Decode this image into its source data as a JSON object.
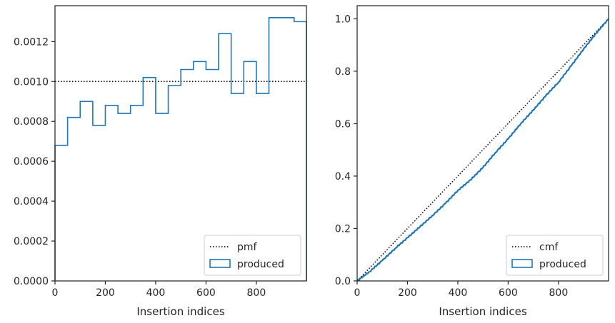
{
  "chart_data": [
    {
      "type": "step-histogram",
      "xlabel": "Insertion indices",
      "ylabel": "",
      "xlim": [
        0,
        999
      ],
      "ylim": [
        0,
        0.00138
      ],
      "xticks": [
        0,
        200,
        400,
        600,
        800
      ],
      "xtick_labels": [
        "0",
        "200",
        "400",
        "600",
        "800"
      ],
      "yticks": [
        0,
        0.0002,
        0.0004,
        0.0006,
        0.0008,
        0.001,
        0.0012
      ],
      "ytick_labels": [
        "0.0000",
        "0.0002",
        "0.0004",
        "0.0006",
        "0.0008",
        "0.0010",
        "0.0012"
      ],
      "reference_line": {
        "name": "pmf",
        "y": 0.001,
        "style": "dotted",
        "color": "#000000"
      },
      "series": [
        {
          "name": "produced",
          "color": "#1f77b4",
          "bin_edges": [
            0,
            50,
            100,
            150,
            200,
            250,
            300,
            350,
            400,
            450,
            500,
            550,
            600,
            650,
            700,
            750,
            800,
            850,
            950,
            999
          ],
          "values": [
            0.00068,
            0.00082,
            0.0009,
            0.00078,
            0.00088,
            0.00084,
            0.00088,
            0.00102,
            0.00084,
            0.00098,
            0.00106,
            0.0011,
            0.00106,
            0.00124,
            0.00094,
            0.0011,
            0.00094,
            0.00132,
            0.0013
          ]
        }
      ],
      "legend": {
        "position": "lower-right",
        "entries": [
          "pmf",
          "produced"
        ]
      },
      "grid": false
    },
    {
      "type": "line",
      "xlabel": "Insertion indices",
      "ylabel": "",
      "xlim": [
        0,
        999
      ],
      "ylim": [
        0,
        1.05
      ],
      "xticks": [
        0,
        200,
        400,
        600,
        800
      ],
      "xtick_labels": [
        "0",
        "200",
        "400",
        "600",
        "800"
      ],
      "yticks": [
        0,
        0.2,
        0.4,
        0.6,
        0.8,
        1.0
      ],
      "ytick_labels": [
        "0.0",
        "0.2",
        "0.4",
        "0.6",
        "0.8",
        "1.0"
      ],
      "reference_line": {
        "name": "cmf",
        "x": [
          0,
          999
        ],
        "y": [
          0,
          1
        ],
        "style": "dotted",
        "color": "#000000"
      },
      "series": [
        {
          "name": "produced",
          "color": "#1f77b4",
          "x": [
            0,
            50,
            100,
            150,
            200,
            250,
            300,
            350,
            400,
            450,
            500,
            550,
            600,
            650,
            700,
            750,
            800,
            850,
            900,
            950,
            999
          ],
          "y": [
            0,
            0.036,
            0.078,
            0.123,
            0.165,
            0.207,
            0.25,
            0.295,
            0.345,
            0.385,
            0.433,
            0.49,
            0.542,
            0.6,
            0.652,
            0.707,
            0.758,
            0.82,
            0.885,
            0.945,
            1.0
          ]
        }
      ],
      "legend": {
        "position": "lower-right",
        "entries": [
          "cmf",
          "produced"
        ]
      },
      "grid": false
    }
  ]
}
